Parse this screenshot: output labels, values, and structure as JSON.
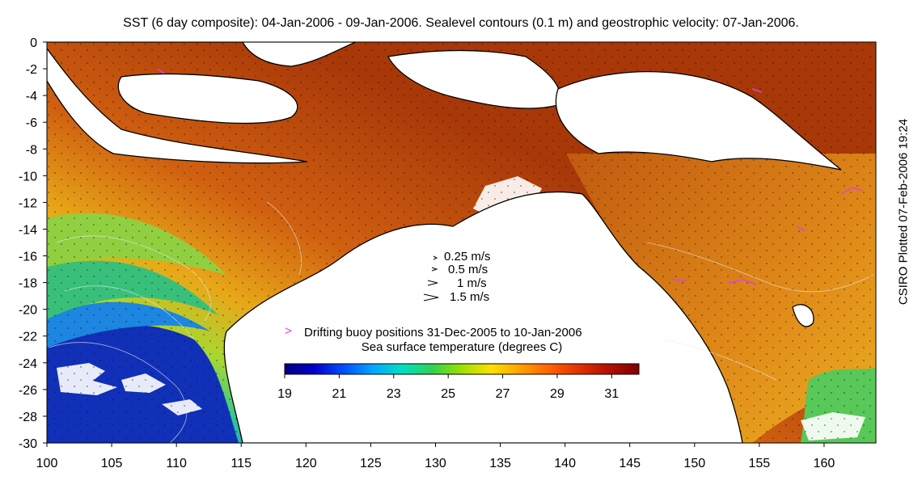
{
  "title": "SST (6 day composite): 04-Jan-2006 - 09-Jan-2006. Sealevel contours (0.1 m) and geostrophic velocity: 07-Jan-2006.",
  "side_note": "CSIRO Plotted 07-Feb-2006 19:24",
  "map": {
    "lon_range": [
      100,
      164
    ],
    "lat_range": [
      -30,
      0
    ],
    "x_ticks": [
      "100",
      "105",
      "110",
      "115",
      "120",
      "125",
      "130",
      "135",
      "140",
      "145",
      "150",
      "155",
      "160"
    ],
    "y_ticks": [
      "0",
      "-2",
      "-4",
      "-6",
      "-8",
      "-10",
      "-12",
      "-14",
      "-16",
      "-18",
      "-20",
      "-22",
      "-24",
      "-26",
      "-28",
      "-30"
    ]
  },
  "velocity_legend": [
    {
      "label": "0.25 m/s"
    },
    {
      "label": "0.5 m/s"
    },
    {
      "label": "1 m/s"
    },
    {
      "label": "1.5 m/s"
    }
  ],
  "buoy_legend": {
    "symbol": ">",
    "label": "Drifting buoy positions 31-Dec-2005 to 10-Jan-2006",
    "color": "#e040e0"
  },
  "colorbar": {
    "title": "Sea surface temperature (degrees C)",
    "tick_labels": [
      "19",
      "21",
      "23",
      "25",
      "27",
      "29",
      "31"
    ],
    "range": [
      19,
      32
    ],
    "colors": [
      "#000080",
      "#0000c8",
      "#0050ff",
      "#00a8ff",
      "#00e0c0",
      "#30d050",
      "#a0e000",
      "#ffe000",
      "#ffa000",
      "#ff6000",
      "#e03000",
      "#b01000",
      "#800000"
    ]
  }
}
